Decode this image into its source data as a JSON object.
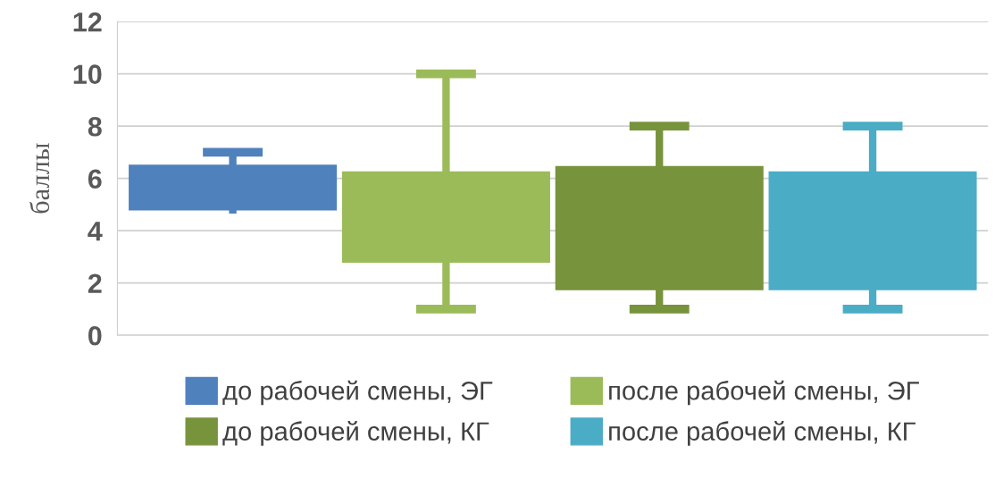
{
  "chart_data": {
    "type": "box",
    "ylabel": "баллы",
    "categories": [
      null
    ],
    "ylim": [
      0,
      12
    ],
    "yticks": [
      0,
      2,
      4,
      6,
      8,
      10,
      12
    ],
    "grid": "y",
    "legend": "bottom",
    "series": [
      {
        "name": "до рабочей смены, ЭГ",
        "color": "#4f81bd",
        "boxes": [
          {
            "low": 4.8,
            "q1": 4.8,
            "q3": 6.5,
            "high": 7.0
          }
        ]
      },
      {
        "name": "после рабочей смены, ЭГ",
        "color": "#9bbb59",
        "boxes": [
          {
            "low": 1.0,
            "q1": 2.8,
            "q3": 6.25,
            "high": 10.0
          }
        ]
      },
      {
        "name": "до рабочей смены, КГ",
        "color": "#77933c",
        "boxes": [
          {
            "low": 1.0,
            "q1": 1.75,
            "q3": 6.45,
            "high": 8.0
          }
        ]
      },
      {
        "name": "после рабочей смены, КГ",
        "color": "#4bacc6",
        "boxes": [
          {
            "low": 1.0,
            "q1": 1.75,
            "q3": 6.25,
            "high": 8.0
          }
        ]
      }
    ]
  }
}
